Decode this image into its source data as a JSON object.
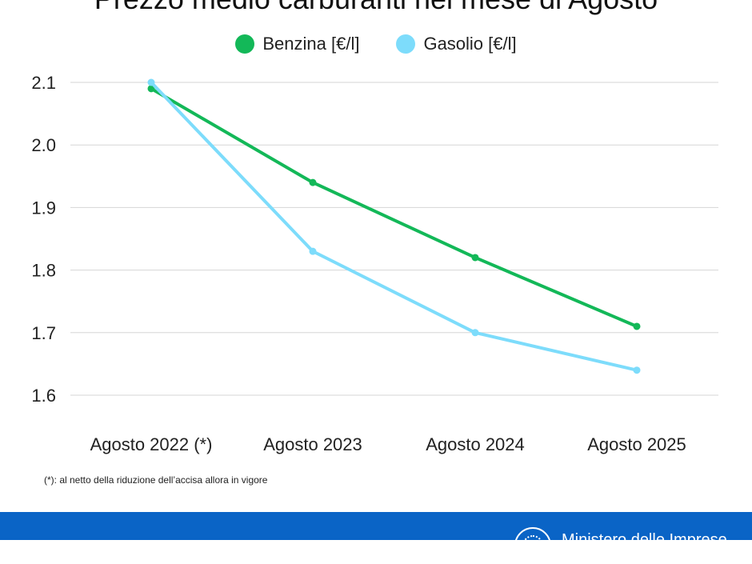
{
  "chart_data": {
    "type": "line",
    "title": "Prezzo medio carburanti nel mese di Agosto",
    "categories": [
      "Agosto 2022 (*)",
      "Agosto 2023",
      "Agosto 2024",
      "Agosto 2025"
    ],
    "series": [
      {
        "name": "Benzina [€/l]",
        "color": "#13b858",
        "values": [
          2.09,
          1.94,
          1.82,
          1.71
        ]
      },
      {
        "name": "Gasolio [€/l]",
        "color": "#7ddcfb",
        "values": [
          2.1,
          1.83,
          1.7,
          1.64
        ]
      }
    ],
    "yticks": [
      "2.1",
      "2.0",
      "1.9",
      "1.8",
      "1.7",
      "1.6"
    ],
    "ylim": [
      1.6,
      2.1
    ],
    "grid": true,
    "legend_position": "top"
  },
  "footnote": "(*): al netto della riduzione dell’accisa allora in vigore",
  "footer": {
    "ministry_text": "Ministero delle Imprese",
    "color": "#0a64c6"
  }
}
